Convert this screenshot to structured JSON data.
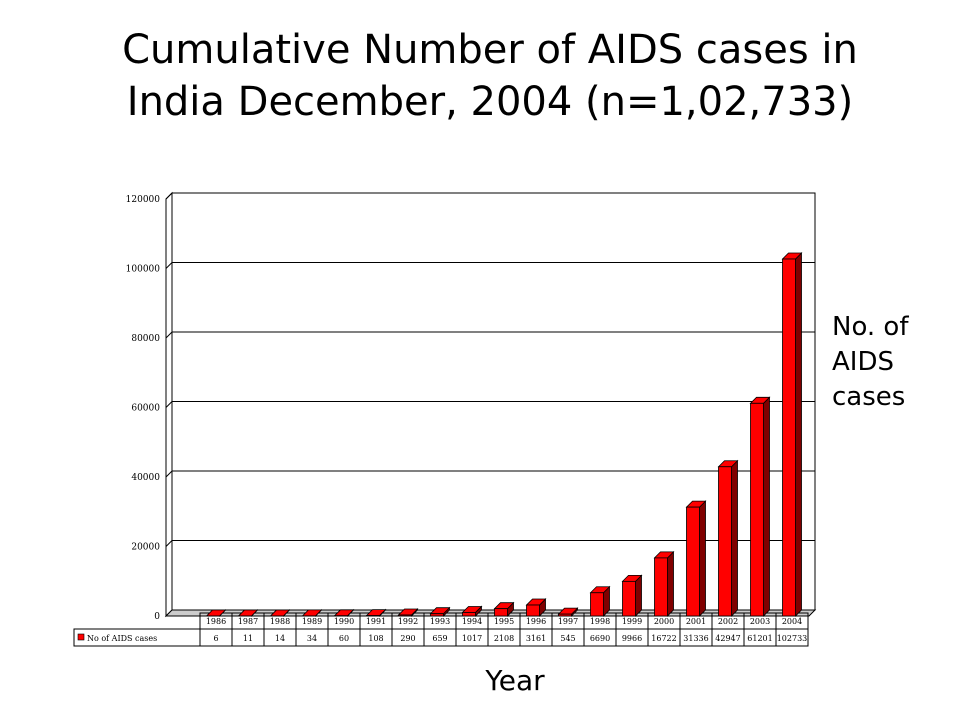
{
  "title_line1": "Cumulative Number of AIDS cases in",
  "title_line2": "India December, 2004 (n=1,02,733)",
  "side_label_line1": "No. of",
  "side_label_line2": "AIDS",
  "side_label_line3": "cases",
  "x_title": "Year",
  "chart_data": {
    "type": "bar",
    "title": "Cumulative Number of AIDS cases in India December, 2004 (n=1,02,733)",
    "xlabel": "Year",
    "ylabel": "No. of AIDS cases",
    "categories": [
      "1986",
      "1987",
      "1988",
      "1989",
      "1990",
      "1991",
      "1992",
      "1993",
      "1994",
      "1995",
      "1996",
      "1997",
      "1998",
      "1999",
      "2000",
      "2001",
      "2002",
      "2003",
      "2004"
    ],
    "series": [
      {
        "name": "No of AIDS cases",
        "color": "#ff0000",
        "values": [
          6,
          11,
          14,
          34,
          60,
          108,
          290,
          659,
          1017,
          2108,
          3161,
          545,
          6690,
          9966,
          16722,
          31336,
          42947,
          61201,
          102733
        ]
      }
    ],
    "ylim": [
      0,
      120000
    ],
    "yticks": [
      0,
      20000,
      40000,
      60000,
      80000,
      100000,
      120000
    ],
    "grid": true,
    "legend": "data-table-left"
  }
}
